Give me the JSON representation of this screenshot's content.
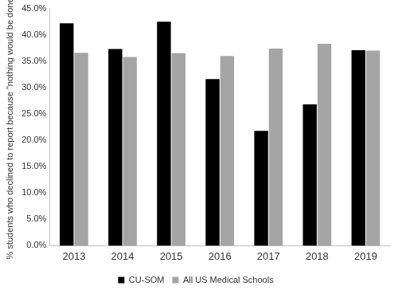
{
  "chart_data": {
    "type": "bar",
    "y_label": "% students who declined to report because \"nothing would be done\"",
    "categories": [
      "2013",
      "2014",
      "2015",
      "2016",
      "2017",
      "2018",
      "2019"
    ],
    "series": [
      {
        "name": "CU-SOM",
        "color": "#000000",
        "values": [
          42.2,
          37.3,
          42.5,
          31.6,
          21.8,
          26.8,
          37.1
        ]
      },
      {
        "name": "All US Medical Schools",
        "color": "#a5a5a5",
        "values": [
          36.6,
          35.8,
          36.5,
          36.0,
          37.4,
          38.3,
          37.0
        ]
      }
    ],
    "ylim": [
      0,
      45
    ],
    "yticks": [
      {
        "value": 0,
        "label": "0.0%"
      },
      {
        "value": 5,
        "label": "5.0%"
      },
      {
        "value": 10,
        "label": "10.0%"
      },
      {
        "value": 15,
        "label": "15.0%"
      },
      {
        "value": 20,
        "label": "20.0%"
      },
      {
        "value": 25,
        "label": "25.0%"
      },
      {
        "value": 30,
        "label": "30.0%"
      },
      {
        "value": 35,
        "label": "35.0%"
      },
      {
        "value": 40,
        "label": "40.0%"
      },
      {
        "value": 45,
        "label": "45.0%"
      }
    ],
    "grid": false,
    "legend": "bottom"
  }
}
